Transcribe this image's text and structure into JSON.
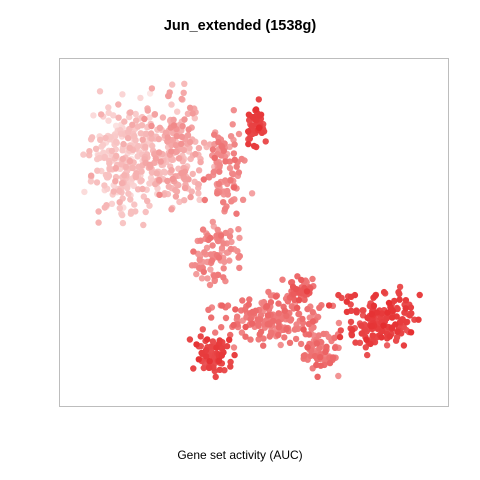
{
  "chart_data": {
    "type": "scatter",
    "title": "Jun_extended (1538g)",
    "xlabel": "Gene set activity (AUC)",
    "ylabel": "",
    "color_scale": {
      "low": "#fdeceb",
      "high": "#e31a1c"
    },
    "axes_visible": false,
    "grid": false,
    "legend": "none"
  }
}
